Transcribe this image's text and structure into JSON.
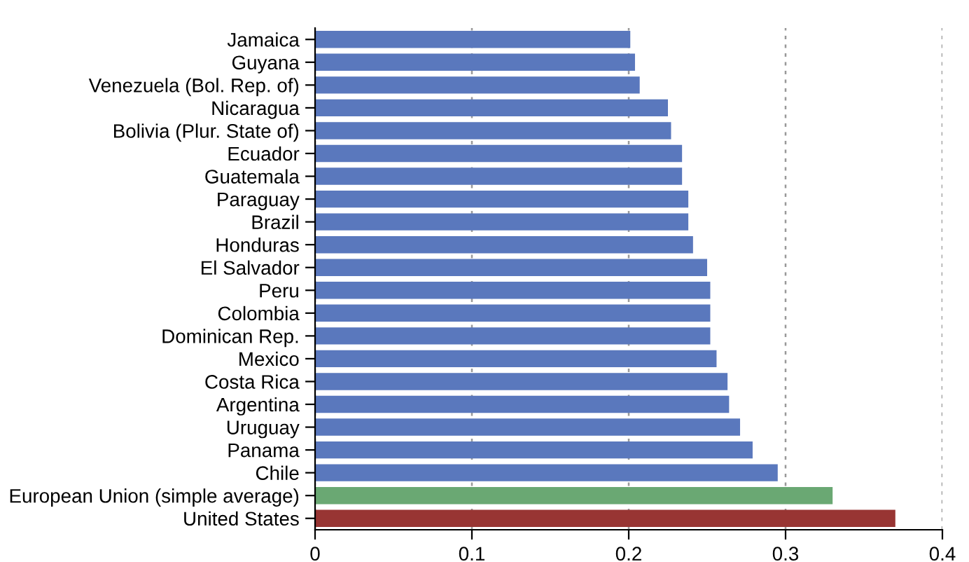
{
  "chart_data": {
    "type": "bar",
    "orientation": "horizontal",
    "categories": [
      "Jamaica",
      "Guyana",
      "Venezuela (Bol. Rep. of)",
      "Nicaragua",
      "Bolivia (Plur. State of)",
      "Ecuador",
      "Guatemala",
      "Paraguay",
      "Brazil",
      "Honduras",
      "El Salvador",
      "Peru",
      "Colombia",
      "Dominican Rep.",
      "Mexico",
      "Costa Rica",
      "Argentina",
      "Uruguay",
      "Panama",
      "Chile",
      "European Union (simple average)",
      "United States"
    ],
    "values": [
      0.201,
      0.204,
      0.207,
      0.225,
      0.227,
      0.234,
      0.234,
      0.238,
      0.238,
      0.241,
      0.25,
      0.252,
      0.252,
      0.252,
      0.256,
      0.263,
      0.264,
      0.271,
      0.279,
      0.295,
      0.33,
      0.37
    ],
    "colors": [
      "#5a78bd",
      "#5a78bd",
      "#5a78bd",
      "#5a78bd",
      "#5a78bd",
      "#5a78bd",
      "#5a78bd",
      "#5a78bd",
      "#5a78bd",
      "#5a78bd",
      "#5a78bd",
      "#5a78bd",
      "#5a78bd",
      "#5a78bd",
      "#5a78bd",
      "#5a78bd",
      "#5a78bd",
      "#5a78bd",
      "#5a78bd",
      "#5a78bd",
      "#6aa873",
      "#983533"
    ],
    "xlim": [
      0,
      0.4
    ],
    "xticks": [
      0,
      0.1,
      0.2,
      0.3,
      0.4
    ],
    "grid": "x"
  }
}
